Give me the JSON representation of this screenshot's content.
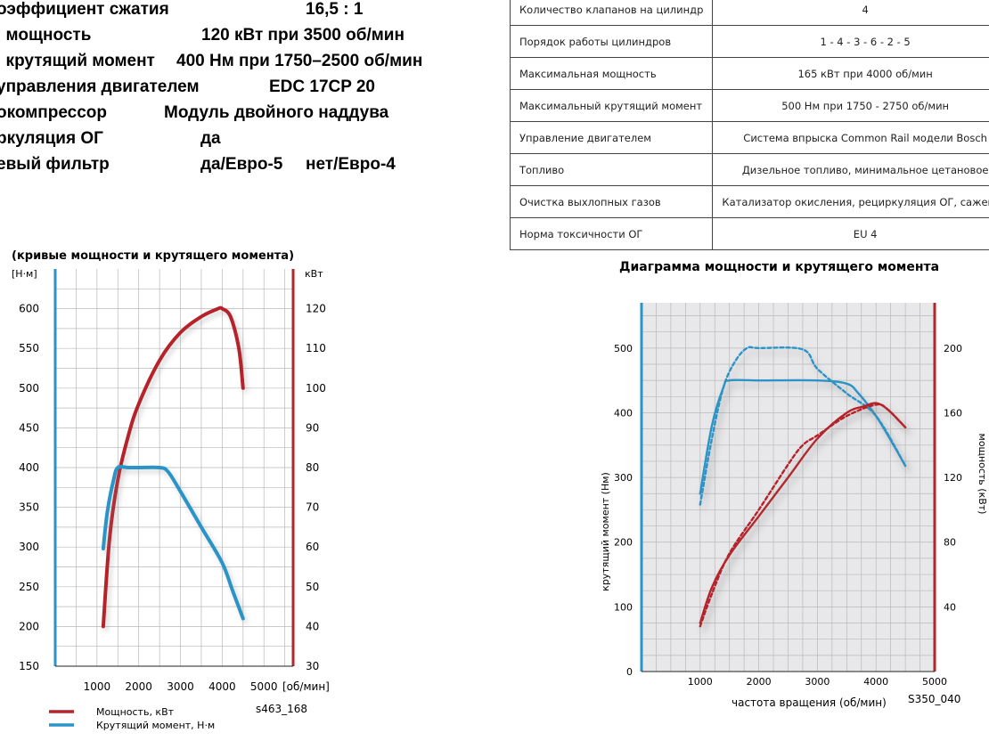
{
  "specs": [
    {
      "label": "оэффициент сжатия",
      "value": "16,5 : 1"
    },
    {
      "label": ". мощность",
      "value": "120 кВт при 3500 об/мин"
    },
    {
      "label": ". крутящий момент",
      "value": "400 Нм при 1750–2500 об/мин"
    },
    {
      "label": "управления двигателем",
      "value": "EDC 17CP 20"
    },
    {
      "label": "окомпрессор",
      "value": "Модуль двойного наддува"
    },
    {
      "label": "ркуляция ОГ",
      "value": "да"
    },
    {
      "label": "евый фильтр",
      "value": "да/Евро-5",
      "value2": "нет/Евро-4"
    }
  ],
  "engine_table": [
    {
      "param": "Количество клапанов на цилиндр",
      "value": "4"
    },
    {
      "param": "Порядок работы цилиндров",
      "value": "1 - 4 - 3 - 6 - 2 - 5"
    },
    {
      "param": "Максимальная мощность",
      "value": "165 кВт при 4000 об/мин"
    },
    {
      "param": "Максимальный крутящий момент",
      "value": "500 Нм при 1750 - 2750 об/мин"
    },
    {
      "param": "Управление двигателем",
      "value": "Система впрыска Common Rail модели Bosch"
    },
    {
      "param": "Топливо",
      "value": "Дизельное топливо, минимальное цетановое"
    },
    {
      "param": "Очистка выхлопных газов",
      "value": "Катализатор окисления, рециркуляция ОГ, сажевый"
    },
    {
      "param": "Норма токсичности ОГ",
      "value": "EU 4"
    }
  ],
  "colors": {
    "power": "#b5242a",
    "torque": "#2a94c8",
    "grid_bg": "#e8e8ea"
  },
  "chart_data": [
    {
      "type": "line",
      "title": "(кривые мощности и крутящего момента)",
      "code": "s463_168",
      "x_unit": "[об/мин]",
      "y_left_unit": "[Н·м]",
      "y_right_unit": "кВт",
      "x_ticks": [
        1000,
        2000,
        3000,
        4000,
        5000
      ],
      "y_left_ticks": [
        150,
        200,
        250,
        300,
        350,
        400,
        450,
        500,
        550,
        600
      ],
      "y_right_ticks": [
        30,
        40,
        50,
        60,
        70,
        80,
        90,
        100,
        110,
        120
      ],
      "xlim": [
        0,
        5700
      ],
      "ylim_left": [
        150,
        650
      ],
      "ylim_right": [
        30,
        130
      ],
      "grid": true,
      "legend_position": "bottom-left",
      "series": [
        {
          "name": "Мощность, кВт",
          "axis": "right",
          "color": "#b5242a",
          "x": [
            1150,
            1300,
            1500,
            1750,
            2000,
            2500,
            3000,
            3500,
            3900,
            4000,
            4200,
            4400,
            4500
          ],
          "y": [
            40,
            62,
            77,
            88,
            96,
            107,
            114,
            118,
            120,
            120,
            118,
            110,
            100
          ]
        },
        {
          "name": "Крутящий момент, Н·м",
          "axis": "left",
          "color": "#2a94c8",
          "x": [
            1150,
            1250,
            1400,
            1500,
            1750,
            2000,
            2500,
            2700,
            3000,
            3500,
            4000,
            4250,
            4500
          ],
          "y": [
            298,
            345,
            385,
            400,
            400,
            400,
            400,
            395,
            370,
            325,
            280,
            245,
            210
          ]
        }
      ]
    },
    {
      "type": "line",
      "title": "Диаграмма мощности и крутящего момента",
      "code": "S350_040",
      "xlabel": "частота вращения (об/мин)",
      "ylabel_left": "крутящий момент (Нм)",
      "ylabel_right": "мощность (кВт)",
      "x_ticks": [
        1000,
        2000,
        3000,
        4000,
        5000
      ],
      "y_left_ticks": [
        0,
        100,
        200,
        300,
        400,
        500
      ],
      "y_right_ticks": [
        40,
        80,
        120,
        160,
        200
      ],
      "xlim": [
        0,
        5000
      ],
      "ylim_left": [
        0,
        570
      ],
      "ylim_right": [
        0,
        228
      ],
      "grid": true,
      "series": [
        {
          "axis": "left",
          "color": "#2a94c8",
          "dash": false,
          "x": [
            1000,
            1200,
            1400,
            1500,
            2000,
            3000,
            3500,
            3700,
            4000,
            4300,
            4500
          ],
          "y": [
            275,
            380,
            440,
            450,
            450,
            450,
            445,
            430,
            395,
            350,
            318
          ]
        },
        {
          "axis": "left",
          "color": "#2a94c8",
          "dash": true,
          "x": [
            1000,
            1200,
            1400,
            1600,
            1800,
            2000,
            2750,
            3000,
            3500,
            4000,
            4500
          ],
          "y": [
            258,
            360,
            440,
            480,
            500,
            500,
            498,
            468,
            430,
            395,
            318
          ]
        },
        {
          "axis": "right",
          "color": "#b5242a",
          "dash": false,
          "x": [
            1000,
            1200,
            1500,
            2000,
            2500,
            3000,
            3500,
            3800,
            4000,
            4200,
            4500
          ],
          "y": [
            30,
            52,
            72,
            96,
            120,
            144,
            160,
            164,
            166,
            162,
            151
          ]
        },
        {
          "axis": "right",
          "color": "#b5242a",
          "dash": true,
          "x": [
            1000,
            1200,
            1500,
            2000,
            2500,
            2750,
            3000,
            3500,
            4000,
            4200,
            4500
          ],
          "y": [
            28,
            48,
            73,
            100,
            128,
            140,
            146,
            158,
            165,
            162,
            151
          ]
        }
      ]
    }
  ]
}
